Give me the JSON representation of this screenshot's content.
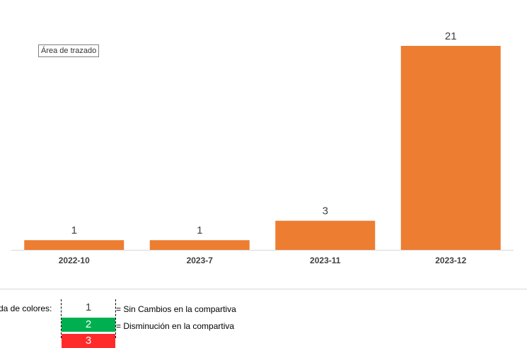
{
  "tooltip": "Área de trazado",
  "chart_data": {
    "type": "bar",
    "title": "",
    "xlabel": "",
    "ylabel": "",
    "categories": [
      "2022-10",
      "2023-7",
      "2023-11",
      "2023-12"
    ],
    "values": [
      1,
      1,
      3,
      21
    ],
    "ylim": [
      0,
      21
    ],
    "grid": false,
    "bar_color": "#ed7d31",
    "axis_color": "#d9d9d9"
  },
  "legend": {
    "title": "da de colores:",
    "items": [
      {
        "value": "1",
        "color": "#ffffff",
        "text": "= Sin Cambios en la compartiva"
      },
      {
        "value": "2",
        "color": "#00b050",
        "text": "= Disminución en la compartiva"
      },
      {
        "value": "3",
        "color": "#ff2b2b",
        "text": ""
      }
    ]
  }
}
